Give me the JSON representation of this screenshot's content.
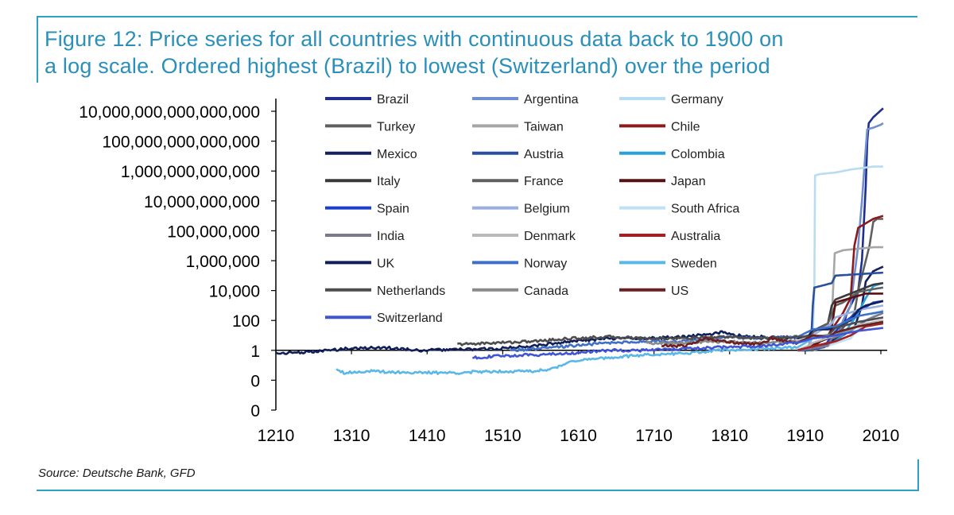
{
  "title": {
    "line1": "Figure 12: Price series for all countries with continuous data back to 1900 on",
    "line2": "a log scale. Ordered highest (Brazil) to lowest (Switzerland) over the period"
  },
  "source": "Source: Deutsche Bank, GFD",
  "chart_data": {
    "type": "line",
    "title": "Price series for all countries with continuous data back to 1900 on a log scale",
    "xlabel": "",
    "ylabel": "",
    "y_scale": "log",
    "x_range": [
      1210,
      2013
    ],
    "x_ticks": [
      1210,
      1310,
      1410,
      1510,
      1610,
      1710,
      1810,
      1910,
      2010
    ],
    "y_ticks": [
      {
        "exp": -4,
        "label": "0"
      },
      {
        "exp": -2,
        "label": "0"
      },
      {
        "exp": 0,
        "label": "1"
      },
      {
        "exp": 2,
        "label": "100"
      },
      {
        "exp": 4,
        "label": "10,000"
      },
      {
        "exp": 6,
        "label": "1,000,000"
      },
      {
        "exp": 8,
        "label": "100,000,000"
      },
      {
        "exp": 10,
        "label": "10,000,000,000"
      },
      {
        "exp": 12,
        "label": "1,000,000,000,000"
      },
      {
        "exp": 14,
        "label": "100,000,000,000,000"
      },
      {
        "exp": 16,
        "label": "10,000,000,000,000,000"
      }
    ],
    "legend_position": "top-center",
    "series": [
      {
        "name": "Brazil",
        "color": "#1f2f8f",
        "points": [
          [
            1900,
            0
          ],
          [
            1910,
            0
          ],
          [
            1930,
            0.2
          ],
          [
            1950,
            0.6
          ],
          [
            1960,
            1.5
          ],
          [
            1965,
            2.5
          ],
          [
            1975,
            3.5
          ],
          [
            1980,
            4
          ],
          [
            1985,
            6
          ],
          [
            1990,
            11
          ],
          [
            1992,
            14
          ],
          [
            1994,
            15.2
          ],
          [
            2000,
            15.6
          ],
          [
            2013,
            16.2
          ]
        ]
      },
      {
        "name": "Argentina",
        "color": "#6f8fd0",
        "points": [
          [
            1900,
            0
          ],
          [
            1920,
            0
          ],
          [
            1940,
            0.3
          ],
          [
            1950,
            0.6
          ],
          [
            1960,
            2
          ],
          [
            1970,
            3
          ],
          [
            1975,
            5
          ],
          [
            1980,
            7
          ],
          [
            1985,
            10
          ],
          [
            1990,
            13.5
          ],
          [
            1992,
            14.8
          ],
          [
            2000,
            14.9
          ],
          [
            2010,
            15.1
          ],
          [
            2013,
            15.2
          ]
        ]
      },
      {
        "name": "Germany",
        "color": "#b8ddf3",
        "points": [
          [
            1900,
            0
          ],
          [
            1915,
            0.2
          ],
          [
            1920,
            1
          ],
          [
            1922,
            4
          ],
          [
            1923,
            11.7
          ],
          [
            1930,
            11.8
          ],
          [
            1950,
            11.9
          ],
          [
            1970,
            12.1
          ],
          [
            2000,
            12.3
          ],
          [
            2013,
            12.3
          ]
        ]
      },
      {
        "name": "Turkey",
        "color": "#606060",
        "points": [
          [
            1900,
            0
          ],
          [
            1920,
            0
          ],
          [
            1940,
            0.5
          ],
          [
            1960,
            1.5
          ],
          [
            1975,
            2.5
          ],
          [
            1980,
            4
          ],
          [
            1990,
            6
          ],
          [
            1995,
            7
          ],
          [
            2000,
            8.6
          ],
          [
            2005,
            8.8
          ],
          [
            2013,
            8.8
          ]
        ]
      },
      {
        "name": "Taiwan",
        "color": "#a6a6a6",
        "points": [
          [
            1900,
            0
          ],
          [
            1940,
            0.5
          ],
          [
            1945,
            2
          ],
          [
            1949,
            6.5
          ],
          [
            1960,
            6.7
          ],
          [
            2000,
            6.9
          ],
          [
            2013,
            6.9
          ]
        ]
      },
      {
        "name": "Chile",
        "color": "#8b1a1a",
        "points": [
          [
            1900,
            0
          ],
          [
            1920,
            0.2
          ],
          [
            1940,
            1
          ],
          [
            1960,
            2.5
          ],
          [
            1970,
            3.5
          ],
          [
            1975,
            7
          ],
          [
            1980,
            8.2
          ],
          [
            2000,
            8.8
          ],
          [
            2013,
            9.0
          ]
        ]
      },
      {
        "name": "Mexico",
        "color": "#13215f",
        "points": [
          [
            1900,
            0
          ],
          [
            1920,
            0.2
          ],
          [
            1940,
            0.5
          ],
          [
            1960,
            1
          ],
          [
            1975,
            1.5
          ],
          [
            1985,
            3
          ],
          [
            1990,
            4.6
          ],
          [
            2000,
            5.3
          ],
          [
            2013,
            5.6
          ]
        ]
      },
      {
        "name": "Austria",
        "color": "#2a4fa0",
        "points": [
          [
            1900,
            0
          ],
          [
            1913,
            0
          ],
          [
            1918,
            0.8
          ],
          [
            1920,
            3
          ],
          [
            1922,
            4.2
          ],
          [
            1930,
            4.3
          ],
          [
            1945,
            4.5
          ],
          [
            1950,
            5
          ],
          [
            2013,
            5.2
          ]
        ]
      },
      {
        "name": "Colombia",
        "color": "#2aa0d8",
        "points": [
          [
            1900,
            0
          ],
          [
            1940,
            0.3
          ],
          [
            1960,
            1
          ],
          [
            1980,
            2.5
          ],
          [
            1990,
            3.5
          ],
          [
            2000,
            4.3
          ],
          [
            2013,
            4.5
          ]
        ]
      },
      {
        "name": "Italy",
        "color": "#3a3a3a",
        "points": [
          [
            1900,
            0
          ],
          [
            1915,
            0.3
          ],
          [
            1920,
            1.3
          ],
          [
            1940,
            1.8
          ],
          [
            1945,
            3
          ],
          [
            1950,
            3.4
          ],
          [
            1980,
            4
          ],
          [
            2000,
            4.4
          ],
          [
            2013,
            4.5
          ]
        ]
      },
      {
        "name": "France",
        "color": "#606060",
        "points": [
          [
            1900,
            0
          ],
          [
            1915,
            0.3
          ],
          [
            1920,
            1.2
          ],
          [
            1940,
            1.8
          ],
          [
            1950,
            3
          ],
          [
            1960,
            3.2
          ],
          [
            1980,
            3.9
          ],
          [
            2000,
            4.1
          ],
          [
            2013,
            4.2
          ]
        ]
      },
      {
        "name": "Japan",
        "color": "#5a1010",
        "points": [
          [
            1900,
            0
          ],
          [
            1940,
            0.8
          ],
          [
            1945,
            1.5
          ],
          [
            1950,
            3.2
          ],
          [
            1970,
            3.5
          ],
          [
            1990,
            3.8
          ],
          [
            2013,
            3.8
          ]
        ]
      },
      {
        "name": "Spain",
        "color": "#1a3fc8",
        "points": [
          [
            1900,
            0
          ],
          [
            1935,
            0.2
          ],
          [
            1945,
            1
          ],
          [
            1960,
            1.8
          ],
          [
            1980,
            2.6
          ],
          [
            2000,
            3.2
          ],
          [
            2013,
            3.3
          ]
        ]
      },
      {
        "name": "Belgium",
        "color": "#9aaee0",
        "points": [
          [
            1900,
            0
          ],
          [
            1915,
            0.3
          ],
          [
            1920,
            1
          ],
          [
            1945,
            1.8
          ],
          [
            1950,
            2.2
          ],
          [
            1980,
            2.7
          ],
          [
            2013,
            3.0
          ]
        ]
      },
      {
        "name": "South Africa",
        "color": "#c2e0f4",
        "points": [
          [
            1900,
            0
          ],
          [
            1940,
            0.3
          ],
          [
            1970,
            0.8
          ],
          [
            1990,
            2
          ],
          [
            2013,
            2.7
          ]
        ]
      },
      {
        "name": "India",
        "color": "#7a7a8a",
        "points": [
          [
            1900,
            0
          ],
          [
            1940,
            0.3
          ],
          [
            1945,
            0.8
          ],
          [
            1970,
            1.3
          ],
          [
            1990,
            2
          ],
          [
            2013,
            2.5
          ]
        ]
      },
      {
        "name": "Denmark",
        "color": "#b8b8b8",
        "points": [
          [
            1900,
            0
          ],
          [
            1915,
            0.3
          ],
          [
            1920,
            0.5
          ],
          [
            1950,
            1
          ],
          [
            1980,
            1.7
          ],
          [
            2013,
            2.0
          ]
        ]
      },
      {
        "name": "Australia",
        "color": "#a52020",
        "points": [
          [
            1900,
            0
          ],
          [
            1915,
            0.2
          ],
          [
            1950,
            0.6
          ],
          [
            1970,
            1
          ],
          [
            1990,
            1.6
          ],
          [
            2013,
            1.8
          ]
        ]
      },
      {
        "name": "UK",
        "color": "#101f5a",
        "points": [
          [
            1210,
            -0.2
          ],
          [
            1260,
            -0.1
          ],
          [
            1300,
            0.1
          ],
          [
            1350,
            0.2
          ],
          [
            1400,
            0
          ],
          [
            1500,
            0.1
          ],
          [
            1550,
            0.3
          ],
          [
            1600,
            0.6
          ],
          [
            1650,
            0.8
          ],
          [
            1700,
            0.8
          ],
          [
            1750,
            0.9
          ],
          [
            1800,
            1.2
          ],
          [
            1815,
            1
          ],
          [
            1850,
            0.9
          ],
          [
            1900,
            0.8
          ],
          [
            1915,
            1.0
          ],
          [
            1920,
            1.4
          ],
          [
            1940,
            1.4
          ],
          [
            1950,
            1.6
          ],
          [
            1970,
            2
          ],
          [
            1980,
            2.7
          ],
          [
            1990,
            3
          ],
          [
            2013,
            3.3
          ]
        ]
      },
      {
        "name": "Norway",
        "color": "#3f6fc8",
        "points": [
          [
            1520,
            0
          ],
          [
            1560,
            0.1
          ],
          [
            1600,
            0.3
          ],
          [
            1650,
            0.5
          ],
          [
            1700,
            0.6
          ],
          [
            1750,
            0.6
          ],
          [
            1800,
            0.9
          ],
          [
            1850,
            0.8
          ],
          [
            1900,
            0.9
          ],
          [
            1920,
            1.4
          ],
          [
            1950,
            1.6
          ],
          [
            1980,
            2.3
          ],
          [
            2013,
            2.6
          ]
        ]
      },
      {
        "name": "Sweden",
        "color": "#5ab8e8",
        "points": [
          [
            1290,
            -1.2
          ],
          [
            1300,
            -1.5
          ],
          [
            1330,
            -1.4
          ],
          [
            1400,
            -1.5
          ],
          [
            1450,
            -1.5
          ],
          [
            1500,
            -1.4
          ],
          [
            1550,
            -1.4
          ],
          [
            1580,
            -1.2
          ],
          [
            1600,
            -0.7
          ],
          [
            1630,
            -0.6
          ],
          [
            1650,
            -0.5
          ],
          [
            1700,
            -0.3
          ],
          [
            1750,
            -0.2
          ],
          [
            1800,
            0
          ],
          [
            1850,
            0.1
          ],
          [
            1900,
            0.2
          ],
          [
            1920,
            0.8
          ],
          [
            1950,
            1
          ],
          [
            1980,
            1.6
          ],
          [
            2013,
            1.9
          ]
        ]
      },
      {
        "name": "Netherlands",
        "color": "#4d4d4d",
        "points": [
          [
            1450,
            0.4
          ],
          [
            1500,
            0.5
          ],
          [
            1550,
            0.6
          ],
          [
            1600,
            0.8
          ],
          [
            1650,
            0.9
          ],
          [
            1700,
            0.8
          ],
          [
            1750,
            0.8
          ],
          [
            1800,
            0.9
          ],
          [
            1850,
            0.8
          ],
          [
            1900,
            0.9
          ],
          [
            1940,
            1
          ],
          [
            1950,
            1.5
          ],
          [
            1980,
            1.9
          ],
          [
            2013,
            2.2
          ]
        ]
      },
      {
        "name": "Canada",
        "color": "#8a8a8a",
        "points": [
          [
            1700,
            0.5
          ],
          [
            1750,
            0.5
          ],
          [
            1800,
            0.6
          ],
          [
            1850,
            0.5
          ],
          [
            1900,
            0.6
          ],
          [
            1920,
            0.9
          ],
          [
            1950,
            1.1
          ],
          [
            1980,
            1.6
          ],
          [
            2013,
            1.9
          ]
        ]
      },
      {
        "name": "US",
        "color": "#6b1f1f",
        "points": [
          [
            1720,
            0.3
          ],
          [
            1750,
            0.3
          ],
          [
            1780,
            0.8
          ],
          [
            1800,
            0.6
          ],
          [
            1850,
            0.4
          ],
          [
            1865,
            0.8
          ],
          [
            1900,
            0.5
          ],
          [
            1920,
            1
          ],
          [
            1940,
            0.9
          ],
          [
            1950,
            1.2
          ],
          [
            1980,
            1.6
          ],
          [
            2013,
            1.9
          ]
        ]
      },
      {
        "name": "Switzerland",
        "color": "#3f55d6",
        "points": [
          [
            1470,
            -0.5
          ],
          [
            1500,
            -0.4
          ],
          [
            1550,
            -0.3
          ],
          [
            1600,
            -0.2
          ],
          [
            1650,
            0
          ],
          [
            1700,
            0
          ],
          [
            1750,
            0.1
          ],
          [
            1800,
            0.2
          ],
          [
            1850,
            0.3
          ],
          [
            1900,
            0.5
          ],
          [
            1920,
            0.8
          ],
          [
            1950,
            1
          ],
          [
            1980,
            1.3
          ],
          [
            2013,
            1.5
          ]
        ]
      }
    ]
  }
}
